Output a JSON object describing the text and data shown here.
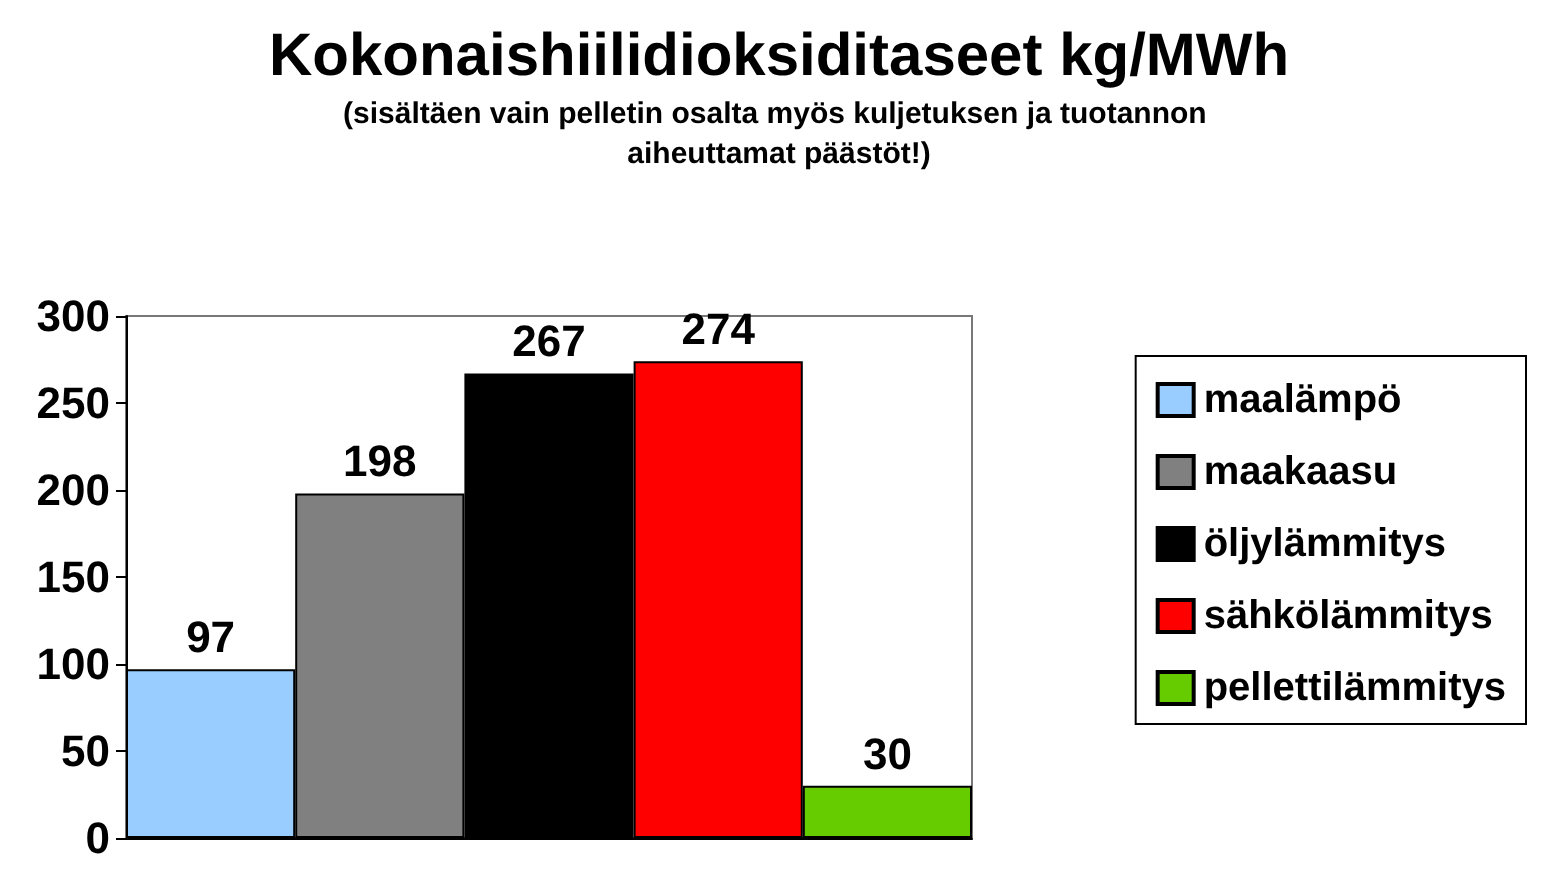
{
  "chart_data": {
    "type": "bar",
    "title": "Kokonaishiilidioksiditaseet kg/MWh",
    "subtitle": "(sisältäen vain pelletin osalta myös kuljetuksen ja tuotannon aiheuttamat päästöt!)",
    "categories": [
      null
    ],
    "series": [
      {
        "name": "maalämpö",
        "color": "#99ccff",
        "values": [
          97
        ]
      },
      {
        "name": "maakaasu",
        "color": "#808080",
        "values": [
          198
        ]
      },
      {
        "name": "öljylämmitys",
        "color": "#000000",
        "values": [
          267
        ]
      },
      {
        "name": "sähkölämmitys",
        "color": "#ff0000",
        "values": [
          274
        ]
      },
      {
        "name": "pellettilämmitys",
        "color": "#66cc00",
        "values": [
          30
        ]
      }
    ],
    "ylim": [
      0,
      300
    ],
    "yticks": [
      0,
      50,
      100,
      150,
      200,
      250,
      300
    ],
    "grid": false,
    "legend": "right",
    "data_labels": true
  }
}
